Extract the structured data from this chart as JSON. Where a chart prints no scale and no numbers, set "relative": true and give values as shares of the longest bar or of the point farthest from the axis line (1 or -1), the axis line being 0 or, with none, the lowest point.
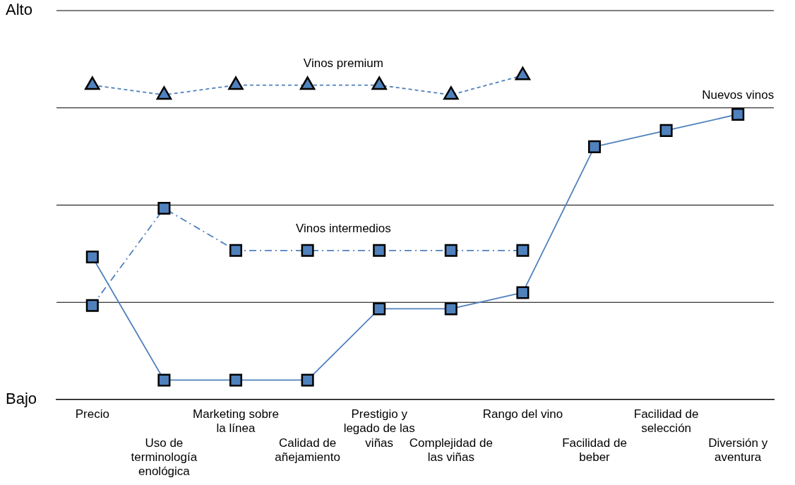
{
  "chart_data": {
    "type": "line",
    "categories": [
      "Precio",
      "Uso de terminología enológica",
      "Marketing sobre la línea",
      "Calidad de añejamiento",
      "Prestigio y legado de las viñas",
      "Complejidad de las viñas",
      "Rango del vino",
      "Facilidad de beber",
      "Facilidad de selección",
      "Diversión y aventura"
    ],
    "relative": true,
    "annotations": [
      "Alto",
      "Bajo"
    ],
    "grid": "y",
    "legend": false,
    "series": [
      {
        "name": "Vinos premium",
        "color": "#4f81bd",
        "marker": "triangle",
        "line_style": "dotted",
        "values": [
          0.97,
          0.94,
          0.97,
          0.97,
          0.97,
          0.94,
          1,
          null,
          null,
          null
        ]
      },
      {
        "name": "Vinos intermedios",
        "color": "#4f81bd",
        "marker": "square",
        "line_style": "dashed",
        "values": [
          0.29,
          0.59,
          0.46,
          0.46,
          0.46,
          0.46,
          0.46,
          null,
          null,
          null
        ]
      },
      {
        "name": "Nuevos vinos",
        "color": "#4f81bd",
        "marker": "square",
        "line_style": "solid",
        "values": [
          0.44,
          0.06,
          0.06,
          0.06,
          0.28,
          0.28,
          0.33,
          0.78,
          0.83,
          0.88
        ]
      }
    ]
  }
}
